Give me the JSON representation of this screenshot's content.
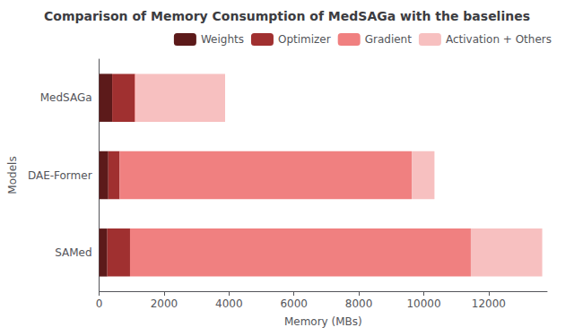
{
  "chart_data": {
    "type": "bar",
    "orientation": "horizontal",
    "stacked": true,
    "title": "Comparison of Memory Consumption of MedSAGa with the baselines",
    "xlabel": "Memory (MBs)",
    "ylabel": "Models",
    "categories": [
      "SAMed",
      "DAE-Former",
      "MedSAGa"
    ],
    "series": [
      {
        "name": "Weights",
        "color": "#5c1a1a",
        "values": [
          250,
          280,
          400
        ]
      },
      {
        "name": "Optimizer",
        "color": "#a03030",
        "values": [
          700,
          350,
          700
        ]
      },
      {
        "name": "Gradient",
        "color": "#f08080",
        "values": [
          10500,
          9000,
          30
        ]
      },
      {
        "name": "Activation + Others",
        "color": "#f7c0c0",
        "values": [
          2200,
          700,
          2750
        ]
      }
    ],
    "xlim": [
      0,
      13800
    ],
    "xticks": [
      0,
      2000,
      4000,
      6000,
      8000,
      10000,
      12000
    ],
    "legend": "upper right",
    "grid": false
  }
}
